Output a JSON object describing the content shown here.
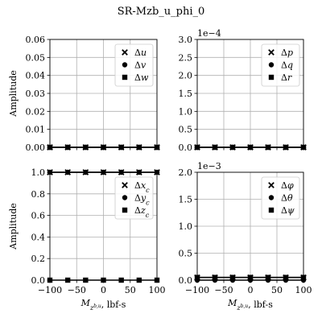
{
  "figure_title": "SR-Mzb_u_phi_0",
  "chart_data": [
    {
      "type": "line",
      "title": "",
      "xlabel": "",
      "ylabel": "Amplitude",
      "offset_text": "",
      "xlim": [
        -100,
        100
      ],
      "ylim": [
        0,
        0.06
      ],
      "x_ticks": [
        -100,
        -50,
        0,
        50,
        100
      ],
      "y_ticks": [
        0,
        0.01,
        0.02,
        0.03,
        0.04,
        0.05,
        0.06
      ],
      "x_tick_labels": [
        "−100",
        "−50",
        "0",
        "50",
        "100"
      ],
      "y_tick_labels": [
        "0.00",
        "0.01",
        "0.02",
        "0.03",
        "0.04",
        "0.05",
        "0.06"
      ],
      "show_x_tick_labels": false,
      "grid": true,
      "legend_position": "top-right",
      "x": [
        -100,
        -66.67,
        -33.33,
        0,
        33.33,
        66.67,
        100
      ],
      "series": [
        {
          "name": "Δu",
          "marker": "x",
          "values": [
            0,
            0,
            0,
            0,
            0,
            0,
            0
          ]
        },
        {
          "name": "Δv",
          "marker": "circle",
          "values": [
            0,
            0,
            0,
            0,
            0,
            0,
            0
          ]
        },
        {
          "name": "Δw",
          "marker": "square",
          "values": [
            0,
            0,
            0,
            0,
            0,
            0,
            0
          ]
        }
      ]
    },
    {
      "type": "line",
      "title": "",
      "xlabel": "",
      "ylabel": "",
      "offset_text": "1e−4",
      "xlim": [
        -100,
        100
      ],
      "ylim": [
        0,
        3.0
      ],
      "x_ticks": [
        -100,
        -50,
        0,
        50,
        100
      ],
      "y_ticks": [
        0,
        0.5,
        1.0,
        1.5,
        2.0,
        2.5,
        3.0
      ],
      "x_tick_labels": [
        "−100",
        "−50",
        "0",
        "50",
        "100"
      ],
      "y_tick_labels": [
        "0.0",
        "0.5",
        "1.0",
        "1.5",
        "2.0",
        "2.5",
        "3.0"
      ],
      "show_x_tick_labels": false,
      "grid": true,
      "legend_position": "top-right",
      "x": [
        -100,
        -66.67,
        -33.33,
        0,
        33.33,
        66.67,
        100
      ],
      "series": [
        {
          "name": "Δp",
          "marker": "x",
          "values": [
            0,
            0,
            0,
            0,
            0,
            0,
            0
          ]
        },
        {
          "name": "Δq",
          "marker": "circle",
          "values": [
            0,
            0,
            0,
            0,
            0,
            0,
            0
          ]
        },
        {
          "name": "Δr",
          "marker": "square",
          "values": [
            0,
            0,
            0,
            0,
            0,
            0,
            0
          ]
        }
      ]
    },
    {
      "type": "line",
      "title": "",
      "xlabel": "M_{z_b,u}, lbf-s",
      "ylabel": "Amplitude",
      "offset_text": "",
      "xlim": [
        -100,
        100
      ],
      "ylim": [
        0,
        1.0
      ],
      "x_ticks": [
        -100,
        -50,
        0,
        50,
        100
      ],
      "y_ticks": [
        0,
        0.2,
        0.4,
        0.6,
        0.8,
        1.0
      ],
      "x_tick_labels": [
        "−100",
        "−50",
        "0",
        "50",
        "100"
      ],
      "y_tick_labels": [
        "0.0",
        "0.2",
        "0.4",
        "0.6",
        "0.8",
        "1.0"
      ],
      "show_x_tick_labels": true,
      "grid": true,
      "legend_position": "top-right",
      "x": [
        -100,
        -66.67,
        -33.33,
        0,
        33.33,
        66.67,
        100
      ],
      "series": [
        {
          "name": "Δx_c",
          "marker": "x",
          "values": [
            1,
            1,
            1,
            1,
            1,
            1,
            1
          ]
        },
        {
          "name": "Δy_c",
          "marker": "circle",
          "values": [
            1,
            1,
            1,
            1,
            1,
            1,
            1
          ]
        },
        {
          "name": "Δz_c",
          "marker": "square",
          "values": [
            0,
            0,
            0,
            0,
            0,
            0,
            0
          ]
        }
      ]
    },
    {
      "type": "line",
      "title": "",
      "xlabel": "M_{z_b,u}, lbf-s",
      "ylabel": "",
      "offset_text": "1e−3",
      "xlim": [
        -100,
        100
      ],
      "ylim": [
        0,
        2.0
      ],
      "x_ticks": [
        -100,
        -50,
        0,
        50,
        100
      ],
      "y_ticks": [
        0,
        0.5,
        1.0,
        1.5,
        2.0
      ],
      "x_tick_labels": [
        "−100",
        "−50",
        "0",
        "50",
        "100"
      ],
      "y_tick_labels": [
        "0.0",
        "0.5",
        "1.0",
        "1.5",
        "2.0"
      ],
      "show_x_tick_labels": true,
      "grid": true,
      "legend_position": "top-right",
      "x": [
        -100,
        -66.67,
        -33.33,
        0,
        33.33,
        66.67,
        100
      ],
      "series": [
        {
          "name": "Δφ",
          "marker": "x",
          "values": [
            0.05,
            0.05,
            0.05,
            0.05,
            0.05,
            0.05,
            0.05
          ]
        },
        {
          "name": "Δθ",
          "marker": "circle",
          "values": [
            0,
            0,
            0,
            0,
            0,
            0,
            0
          ]
        },
        {
          "name": "Δψ",
          "marker": "square",
          "values": [
            0.05,
            0.05,
            0.05,
            0.05,
            0.05,
            0.05,
            0.05
          ]
        }
      ]
    }
  ]
}
